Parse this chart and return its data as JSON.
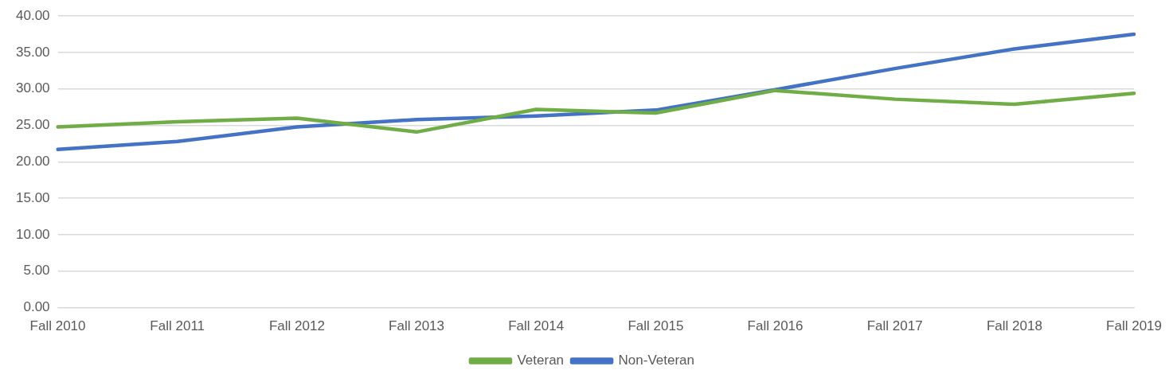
{
  "chart_data": {
    "type": "line",
    "categories": [
      "Fall 2010",
      "Fall 2011",
      "Fall 2012",
      "Fall 2013",
      "Fall 2014",
      "Fall 2015",
      "Fall 2016",
      "Fall 2017",
      "Fall 2018",
      "Fall 2019"
    ],
    "series": [
      {
        "name": "Veteran",
        "color": "#70ad47",
        "values": [
          24.8,
          25.5,
          26.0,
          24.1,
          27.2,
          26.7,
          29.8,
          28.6,
          27.9,
          29.4
        ]
      },
      {
        "name": "Non-Veteran",
        "color": "#4472c4",
        "values": [
          21.7,
          22.8,
          24.8,
          25.8,
          26.3,
          27.1,
          29.9,
          32.8,
          35.5,
          37.5
        ]
      }
    ],
    "ylim": [
      0,
      40
    ],
    "yticks": [
      {
        "value": 0,
        "label": "0.00"
      },
      {
        "value": 5,
        "label": "5.00"
      },
      {
        "value": 10,
        "label": "10.00"
      },
      {
        "value": 15,
        "label": "15.00"
      },
      {
        "value": 20,
        "label": "20.00"
      },
      {
        "value": 25,
        "label": "25.00"
      },
      {
        "value": 30,
        "label": "30.00"
      },
      {
        "value": 35,
        "label": "35.00"
      },
      {
        "value": 40,
        "label": "40.00"
      }
    ],
    "grid": "y",
    "legend": "bottom",
    "marker": "none",
    "line_style": "solid"
  }
}
